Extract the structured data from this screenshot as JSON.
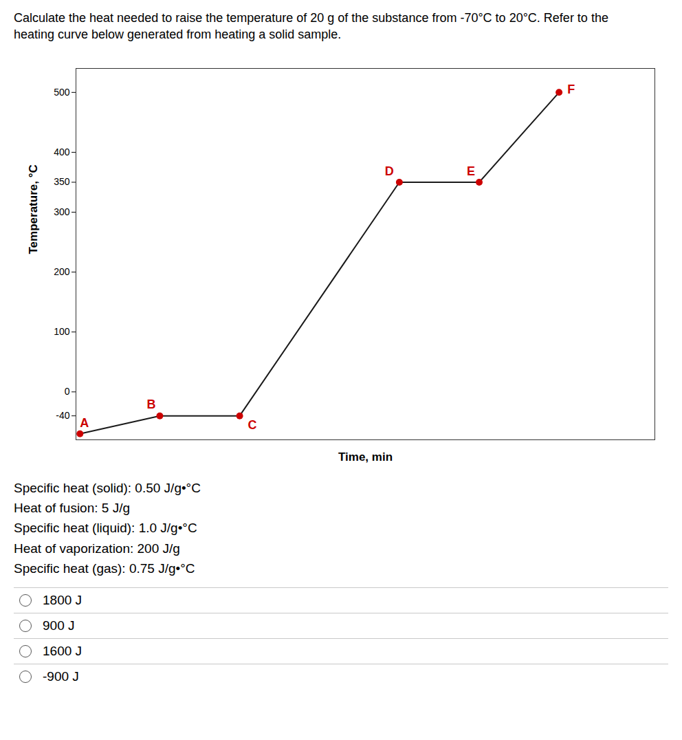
{
  "chart_data": {
    "type": "line",
    "title": "Calculate the heat needed to raise the temperature of 20 g of the substance from -70°C to 20°C. Refer to the",
    "subtitle": "heating curve below generated from heating a solid sample.",
    "x": [
      0,
      1,
      2,
      4,
      5,
      6
    ],
    "values": [
      -70,
      -40,
      -40,
      350,
      350,
      500
    ],
    "color": "#1a1a1a",
    "marker": "o",
    "colors": [
      "#cc0000",
      "#cc0000",
      "#cc0000",
      "#cc0000",
      "#cc0000",
      "#cc0000"
    ],
    "annotations": [
      {
        "text": "A",
        "x": 0,
        "y": -70
      },
      {
        "text": "B",
        "x": 1,
        "y": -40
      },
      {
        "text": "C",
        "x": 2,
        "y": -40
      },
      {
        "text": "D",
        "x": 4,
        "y": 350
      },
      {
        "text": "E",
        "x": 5,
        "y": 350
      },
      {
        "text": "F",
        "x": 6,
        "y": 500
      }
    ],
    "xlabel": "Time, min",
    "ylabel": "Temperature, °C",
    "xlim": [
      -0.05,
      7.2
    ],
    "xticks": [],
    "ylim": [
      -80,
      540
    ],
    "yticks": [
      -40,
      0,
      100,
      200,
      300,
      350,
      400,
      500
    ],
    "tick_labels": "y",
    "info_lines": [
      "Specific heat (solid): 0.50 J/g•°C",
      "Heat of fusion: 5 J/g",
      "Specific heat (liquid): 1.0 J/g•°C",
      "Heat of vaporization: 200 J/g",
      "Specific heat (gas): 0.75 J/g•°C"
    ],
    "answer_choices": [
      "1800 J",
      "900 J",
      "1600 J",
      "-900 J"
    ]
  }
}
